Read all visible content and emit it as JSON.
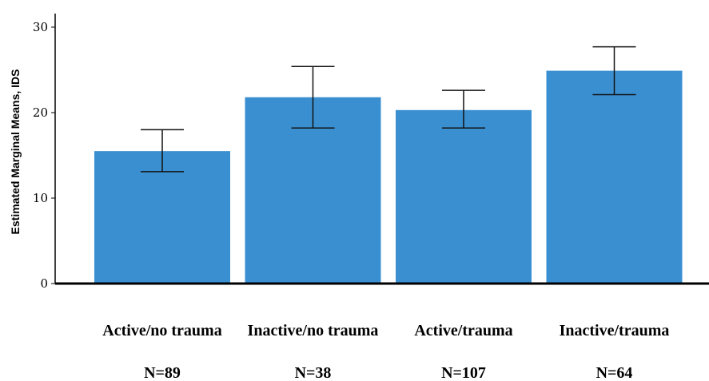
{
  "chart_data": {
    "type": "bar",
    "categories": [
      "Active/no trauma",
      "Inactive/no trauma",
      "Active/trauma",
      "Inactive/trauma"
    ],
    "sample_sizes": [
      "N=89",
      "N=38",
      "N=107",
      "N=64"
    ],
    "values": [
      15.5,
      21.8,
      20.3,
      24.9
    ],
    "error_low": [
      13.1,
      18.2,
      18.2,
      22.1
    ],
    "error_high": [
      18.0,
      25.4,
      22.6,
      27.7
    ],
    "ylabel": "Estimated Marginal Means, IDS",
    "xlabel": "",
    "title": "",
    "yticks": [
      0,
      10,
      20,
      30
    ],
    "ylim": [
      0,
      32
    ],
    "bar_color": "#3a8fd0",
    "grid": false,
    "legend": "none"
  }
}
